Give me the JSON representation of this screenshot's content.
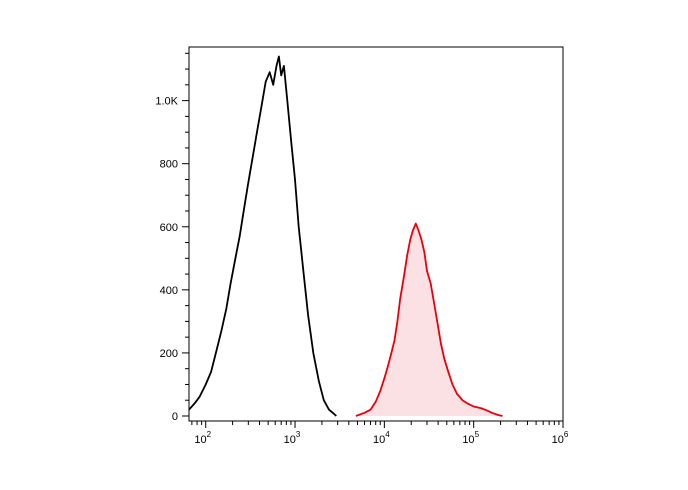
{
  "chart_data": {
    "type": "area",
    "title": "",
    "xlabel": "",
    "ylabel": "",
    "x_scale": "log",
    "xlim": [
      65,
      1000000
    ],
    "ylim": [
      0,
      1170
    ],
    "grid": false,
    "y_ticks": [
      {
        "value": 0,
        "label": "0"
      },
      {
        "value": 200,
        "label": "200"
      },
      {
        "value": 400,
        "label": "400"
      },
      {
        "value": 600,
        "label": "600"
      },
      {
        "value": 800,
        "label": "800"
      },
      {
        "value": 1000,
        "label": "1.0K"
      }
    ],
    "x_ticks": [
      {
        "value": 100,
        "base": "10",
        "exp": "2"
      },
      {
        "value": 1000,
        "base": "10",
        "exp": "3"
      },
      {
        "value": 10000,
        "base": "10",
        "exp": "4"
      },
      {
        "value": 100000,
        "base": "10",
        "exp": "5"
      },
      {
        "value": 1000000,
        "base": "10",
        "exp": "6"
      }
    ],
    "series": [
      {
        "color": "#000000",
        "fill": "none",
        "points": [
          [
            65,
            20
          ],
          [
            75,
            40
          ],
          [
            85,
            60
          ],
          [
            100,
            100
          ],
          [
            115,
            140
          ],
          [
            130,
            200
          ],
          [
            150,
            270
          ],
          [
            170,
            340
          ],
          [
            190,
            420
          ],
          [
            215,
            500
          ],
          [
            240,
            570
          ],
          [
            270,
            660
          ],
          [
            300,
            740
          ],
          [
            340,
            830
          ],
          [
            380,
            910
          ],
          [
            420,
            980
          ],
          [
            470,
            1060
          ],
          [
            520,
            1090
          ],
          [
            570,
            1050
          ],
          [
            620,
            1110
          ],
          [
            660,
            1140
          ],
          [
            700,
            1080
          ],
          [
            750,
            1110
          ],
          [
            820,
            1000
          ],
          [
            900,
            880
          ],
          [
            1000,
            750
          ],
          [
            1100,
            600
          ],
          [
            1250,
            450
          ],
          [
            1400,
            320
          ],
          [
            1600,
            200
          ],
          [
            1850,
            110
          ],
          [
            2100,
            50
          ],
          [
            2400,
            20
          ],
          [
            2700,
            8
          ],
          [
            2900,
            0
          ]
        ]
      },
      {
        "color": "#e8000b",
        "fill": "#fbe1e3",
        "points": [
          [
            4800,
            0
          ],
          [
            6000,
            10
          ],
          [
            7000,
            20
          ],
          [
            8000,
            45
          ],
          [
            9000,
            80
          ],
          [
            10000,
            120
          ],
          [
            11000,
            160
          ],
          [
            12000,
            200
          ],
          [
            13000,
            240
          ],
          [
            14000,
            300
          ],
          [
            15000,
            370
          ],
          [
            16500,
            440
          ],
          [
            18000,
            510
          ],
          [
            19500,
            560
          ],
          [
            21000,
            590
          ],
          [
            22500,
            610
          ],
          [
            24000,
            590
          ],
          [
            26000,
            560
          ],
          [
            28000,
            520
          ],
          [
            30000,
            460
          ],
          [
            33000,
            420
          ],
          [
            36000,
            360
          ],
          [
            39000,
            300
          ],
          [
            43000,
            230
          ],
          [
            47000,
            180
          ],
          [
            52000,
            140
          ],
          [
            58000,
            100
          ],
          [
            65000,
            70
          ],
          [
            75000,
            50
          ],
          [
            85000,
            40
          ],
          [
            100000,
            30
          ],
          [
            120000,
            25
          ],
          [
            140000,
            18
          ],
          [
            160000,
            10
          ],
          [
            190000,
            3
          ],
          [
            210000,
            0
          ]
        ]
      }
    ]
  }
}
